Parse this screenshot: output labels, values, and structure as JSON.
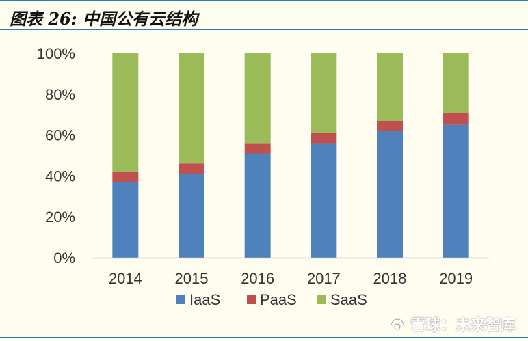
{
  "header": {
    "title": "图表 26:  中国公有云结构"
  },
  "watermark": {
    "text": "雪球：未来智库",
    "icon": "snowball-logo-icon"
  },
  "colors": {
    "IaaS": "#4f81bd",
    "PaaS": "#c0504d",
    "SaaS": "#9bbb59",
    "rule": "#2a7fb8",
    "background": "#fffdf0"
  },
  "chart_data": {
    "type": "bar",
    "stacked": true,
    "categories": [
      "2014",
      "2015",
      "2016",
      "2017",
      "2018",
      "2019"
    ],
    "series": [
      {
        "name": "IaaS",
        "values": [
          37,
          41,
          51,
          56,
          62,
          65
        ]
      },
      {
        "name": "PaaS",
        "values": [
          5,
          5,
          5,
          5,
          5,
          6
        ]
      },
      {
        "name": "SaaS",
        "values": [
          58,
          54,
          44,
          39,
          33,
          29
        ]
      }
    ],
    "yticks": [
      "0%",
      "20%",
      "40%",
      "60%",
      "80%",
      "100%"
    ],
    "ylim": [
      0,
      100
    ],
    "grid": false,
    "legend": "bottom"
  }
}
